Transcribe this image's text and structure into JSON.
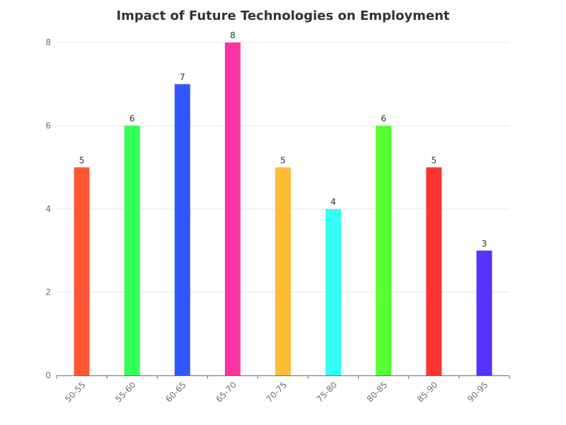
{
  "chart_data": {
    "type": "bar",
    "title": "Impact of Future Technologies on Employment",
    "xlabel": "",
    "ylabel": "",
    "categories": [
      "50-55",
      "55-60",
      "60-65",
      "65-70",
      "70-75",
      "75-80",
      "80-85",
      "85-90",
      "90-95"
    ],
    "values": [
      5,
      6,
      7,
      8,
      5,
      4,
      6,
      5,
      3
    ],
    "colors": [
      "#FF5733",
      "#33FF57",
      "#3357FF",
      "#FF33A1",
      "#FFBD33",
      "#33FFF5",
      "#57FF33",
      "#FF3333",
      "#5733FF"
    ],
    "ylim": [
      0,
      8
    ],
    "yticks": [
      0,
      2,
      4,
      6,
      8
    ],
    "grid": true,
    "legend": "none",
    "data_labels": true
  }
}
